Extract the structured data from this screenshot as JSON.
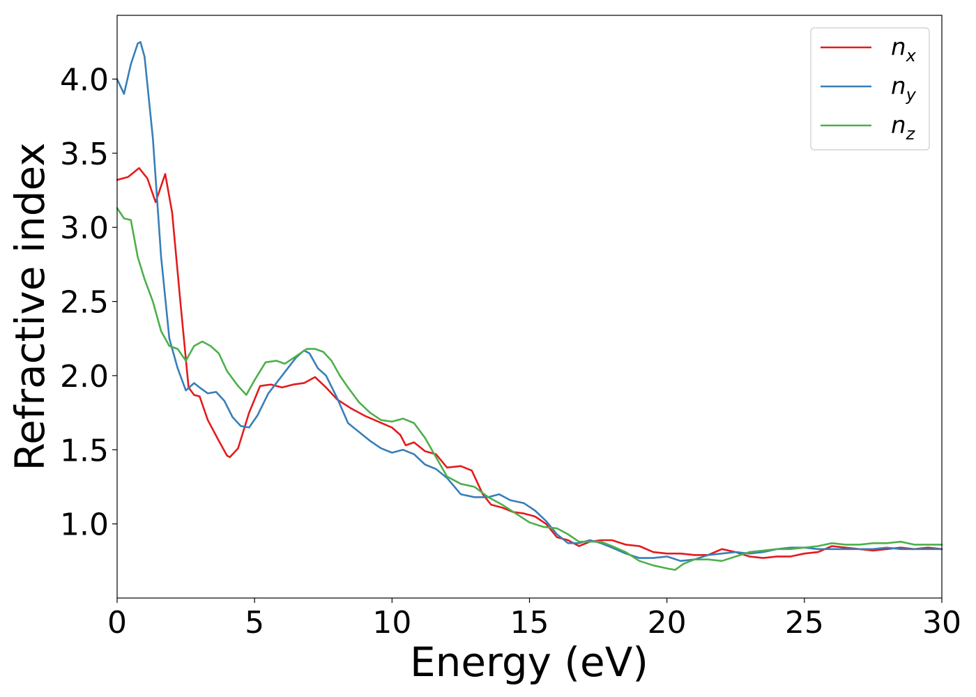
{
  "chart_data": {
    "type": "line",
    "xlabel": "Energy (eV)",
    "ylabel": "Refractive index",
    "xlim": [
      0,
      30
    ],
    "ylim": [
      0.5,
      4.43
    ],
    "xticks": [
      0,
      5,
      10,
      15,
      20,
      25,
      30
    ],
    "yticks": [
      1.0,
      1.5,
      2.0,
      2.5,
      3.0,
      3.5,
      4.0
    ],
    "xtick_labels": [
      "0",
      "5",
      "10",
      "15",
      "20",
      "25",
      "30"
    ],
    "ytick_labels": [
      "1.0",
      "1.5",
      "2.0",
      "2.5",
      "3.0",
      "3.5",
      "4.0"
    ],
    "grid": false,
    "legend_position": "top-right",
    "series": [
      {
        "name": "n_x",
        "label_base": "n",
        "label_sub": "x",
        "color": "#e41a1c",
        "x": [
          0,
          0.4,
          0.8,
          1.1,
          1.4,
          1.75,
          2.0,
          2.3,
          2.6,
          2.8,
          3.0,
          3.3,
          3.7,
          4.0,
          4.1,
          4.4,
          4.8,
          5.2,
          5.6,
          6.0,
          6.4,
          6.8,
          7.2,
          7.6,
          8.0,
          8.5,
          9.0,
          9.5,
          10.0,
          10.3,
          10.5,
          10.8,
          11.2,
          11.6,
          12.0,
          12.5,
          12.9,
          13.3,
          13.6,
          14.0,
          14.4,
          14.8,
          15.2,
          15.6,
          16.0,
          16.4,
          16.8,
          17.2,
          17.6,
          18.0,
          18.5,
          19.0,
          19.5,
          20.0,
          20.5,
          21.0,
          21.5,
          22.0,
          22.5,
          23.0,
          23.5,
          24.0,
          24.5,
          25.0,
          25.5,
          26.0,
          26.5,
          27.0,
          27.5,
          28.0,
          28.5,
          29.0,
          29.5,
          30.0
        ],
        "y": [
          3.32,
          3.34,
          3.4,
          3.33,
          3.17,
          3.36,
          3.1,
          2.5,
          1.92,
          1.87,
          1.86,
          1.7,
          1.56,
          1.46,
          1.45,
          1.51,
          1.75,
          1.93,
          1.94,
          1.92,
          1.94,
          1.95,
          1.99,
          1.92,
          1.84,
          1.78,
          1.73,
          1.69,
          1.65,
          1.6,
          1.53,
          1.55,
          1.49,
          1.47,
          1.38,
          1.39,
          1.36,
          1.2,
          1.13,
          1.11,
          1.08,
          1.07,
          1.05,
          1.0,
          0.91,
          0.89,
          0.85,
          0.88,
          0.89,
          0.89,
          0.86,
          0.85,
          0.81,
          0.8,
          0.8,
          0.79,
          0.79,
          0.83,
          0.81,
          0.78,
          0.77,
          0.78,
          0.78,
          0.8,
          0.81,
          0.85,
          0.84,
          0.83,
          0.82,
          0.83,
          0.84,
          0.83,
          0.84,
          0.83
        ]
      },
      {
        "name": "n_y",
        "label_base": "n",
        "label_sub": "y",
        "color": "#377eb8",
        "x": [
          0,
          0.25,
          0.5,
          0.75,
          0.85,
          1.0,
          1.3,
          1.6,
          1.9,
          2.2,
          2.5,
          2.8,
          3.0,
          3.3,
          3.6,
          3.9,
          4.2,
          4.5,
          4.8,
          5.1,
          5.5,
          6.0,
          6.5,
          6.8,
          7.0,
          7.3,
          7.6,
          8.0,
          8.4,
          8.8,
          9.2,
          9.6,
          10.0,
          10.4,
          10.8,
          11.2,
          11.6,
          12.0,
          12.5,
          13.0,
          13.5,
          13.9,
          14.3,
          14.8,
          15.2,
          15.6,
          16.0,
          16.4,
          16.8,
          17.2,
          17.6,
          18.0,
          18.5,
          19.0,
          19.5,
          20.0,
          20.5,
          21.0,
          21.5,
          22.0,
          22.5,
          23.0,
          23.5,
          24.0,
          24.5,
          25.0,
          25.5,
          26.0,
          26.5,
          27.0,
          27.5,
          28.0,
          28.5,
          29.0,
          29.5,
          30.0
        ],
        "y": [
          4.0,
          3.9,
          4.1,
          4.24,
          4.25,
          4.15,
          3.6,
          2.8,
          2.25,
          2.05,
          1.9,
          1.95,
          1.92,
          1.88,
          1.89,
          1.83,
          1.72,
          1.66,
          1.65,
          1.73,
          1.88,
          2.0,
          2.12,
          2.17,
          2.15,
          2.05,
          2.0,
          1.85,
          1.68,
          1.62,
          1.56,
          1.51,
          1.48,
          1.5,
          1.47,
          1.4,
          1.37,
          1.31,
          1.2,
          1.18,
          1.18,
          1.2,
          1.16,
          1.14,
          1.09,
          1.02,
          0.93,
          0.87,
          0.87,
          0.89,
          0.87,
          0.84,
          0.8,
          0.77,
          0.77,
          0.78,
          0.75,
          0.76,
          0.79,
          0.8,
          0.81,
          0.8,
          0.81,
          0.83,
          0.84,
          0.84,
          0.83,
          0.83,
          0.83,
          0.83,
          0.83,
          0.84,
          0.83,
          0.83,
          0.83,
          0.83
        ]
      },
      {
        "name": "n_z",
        "label_base": "n",
        "label_sub": "z",
        "color": "#4daf4a",
        "x": [
          0,
          0.25,
          0.5,
          0.75,
          1.0,
          1.3,
          1.6,
          1.9,
          2.2,
          2.5,
          2.8,
          3.1,
          3.4,
          3.7,
          4.0,
          4.4,
          4.7,
          5.0,
          5.4,
          5.8,
          6.1,
          6.5,
          6.9,
          7.2,
          7.5,
          7.8,
          8.1,
          8.4,
          8.8,
          9.2,
          9.6,
          10.0,
          10.4,
          10.8,
          11.2,
          11.6,
          12.0,
          12.5,
          13.0,
          13.5,
          14.0,
          14.5,
          15.0,
          15.5,
          16.0,
          16.4,
          16.8,
          17.2,
          17.6,
          18.0,
          18.5,
          19.0,
          19.5,
          20.0,
          20.3,
          20.6,
          21.0,
          21.5,
          22.0,
          22.5,
          23.0,
          23.5,
          24.0,
          24.5,
          25.0,
          25.5,
          26.0,
          26.5,
          27.0,
          27.5,
          28.0,
          28.5,
          29.0,
          29.5,
          30.0
        ],
        "y": [
          3.13,
          3.06,
          3.05,
          2.8,
          2.65,
          2.5,
          2.3,
          2.2,
          2.18,
          2.1,
          2.2,
          2.23,
          2.2,
          2.15,
          2.03,
          1.93,
          1.87,
          1.97,
          2.09,
          2.1,
          2.08,
          2.13,
          2.18,
          2.18,
          2.16,
          2.1,
          2.0,
          1.92,
          1.82,
          1.75,
          1.7,
          1.69,
          1.71,
          1.68,
          1.58,
          1.45,
          1.32,
          1.27,
          1.25,
          1.18,
          1.13,
          1.07,
          1.01,
          0.98,
          0.97,
          0.93,
          0.88,
          0.88,
          0.88,
          0.85,
          0.81,
          0.75,
          0.72,
          0.7,
          0.69,
          0.73,
          0.76,
          0.76,
          0.75,
          0.78,
          0.81,
          0.82,
          0.83,
          0.83,
          0.84,
          0.85,
          0.87,
          0.86,
          0.86,
          0.87,
          0.87,
          0.88,
          0.86,
          0.86,
          0.86
        ]
      }
    ]
  }
}
